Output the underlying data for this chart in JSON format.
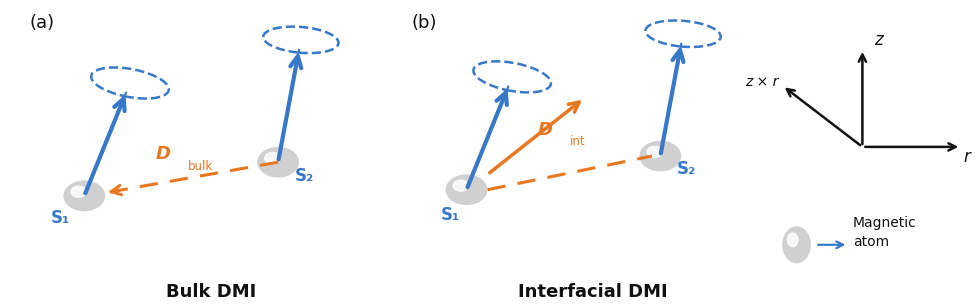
{
  "blue": "#3878C8",
  "orange": "#E87820",
  "black": "#111111",
  "bg": "#ffffff",
  "title_a": "Bulk DMI",
  "title_b": "Interfacial DMI",
  "label_a": "(a)",
  "label_b": "(b)",
  "S1": "S₁",
  "S2": "S₂",
  "D_bulk": "D",
  "D_bulk_sub": "bulk",
  "D_int": "D",
  "D_int_sub": "int",
  "z_label": "z",
  "r_label": "r",
  "zxr_label": "z × r",
  "mag_label": "Magnetic\natom",
  "panel_a_bounds": [
    0.0,
    0.0,
    0.43,
    1.0
  ],
  "panel_b_bounds": [
    0.39,
    0.0,
    0.43,
    1.0
  ],
  "panel_c_bounds": [
    0.76,
    0.0,
    0.24,
    1.0
  ]
}
